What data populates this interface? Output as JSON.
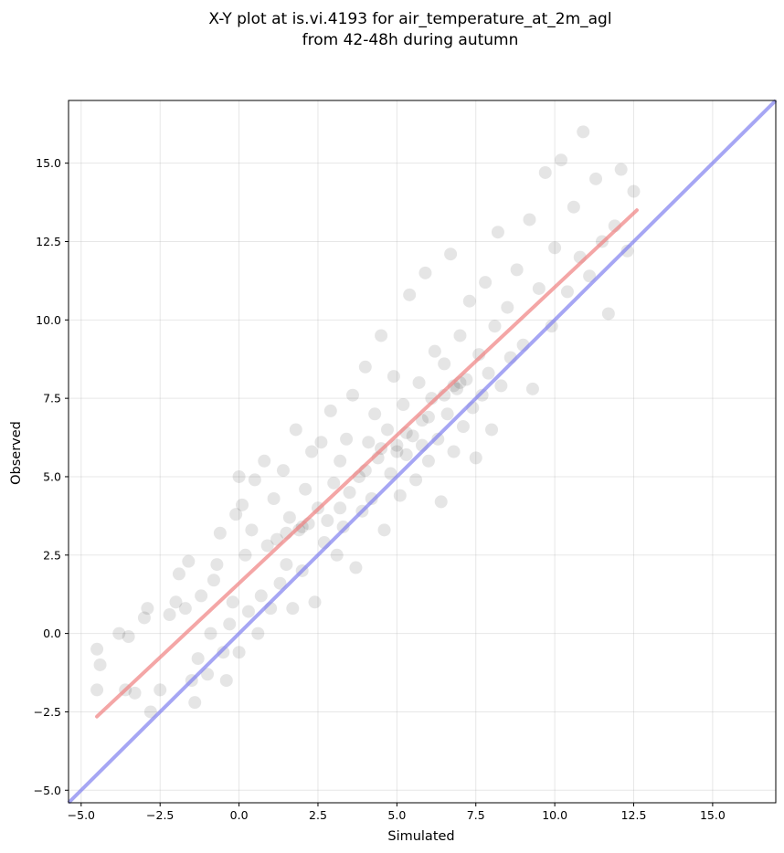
{
  "chart_data": {
    "type": "scatter",
    "title_line1": "X-Y plot at is.vi.4193 for air_temperature_at_2m_agl",
    "title_line2": "from 42-48h during autumn",
    "xlabel": "Simulated",
    "ylabel": "Observed",
    "xlim": [
      -5.4,
      17.0
    ],
    "ylim": [
      -5.4,
      17.0
    ],
    "xticks": [
      -5.0,
      -2.5,
      0.0,
      2.5,
      5.0,
      7.5,
      10.0,
      12.5,
      15.0
    ],
    "xtick_labels": [
      "−5.0",
      "−2.5",
      "0.0",
      "2.5",
      "5.0",
      "7.5",
      "10.0",
      "12.5",
      "15.0"
    ],
    "yticks": [
      -5.0,
      -2.5,
      0.0,
      2.5,
      5.0,
      7.5,
      10.0,
      12.5,
      15.0
    ],
    "ytick_labels": [
      "−5.0",
      "−2.5",
      "0.0",
      "2.5",
      "5.0",
      "7.5",
      "10.0",
      "12.5",
      "15.0"
    ],
    "grid": true,
    "point_color": "#000000",
    "point_alpha": 0.1,
    "regression_line": {
      "x": [
        -4.5,
        12.6
      ],
      "y": [
        -2.65,
        13.5
      ],
      "color": "#f08080"
    },
    "identity_line": {
      "x": [
        -5.4,
        17.0
      ],
      "y": [
        -5.4,
        17.0
      ],
      "color": "#8080f0"
    },
    "points": [
      [
        -4.5,
        -0.5
      ],
      [
        -4.4,
        -1.0
      ],
      [
        -4.5,
        -1.8
      ],
      [
        -3.8,
        0.0
      ],
      [
        -3.5,
        -0.1
      ],
      [
        -3.6,
        -1.8
      ],
      [
        -3.3,
        -1.9
      ],
      [
        -3.0,
        0.5
      ],
      [
        -2.9,
        0.8
      ],
      [
        -2.8,
        -2.5
      ],
      [
        -2.5,
        -1.8
      ],
      [
        -2.2,
        0.6
      ],
      [
        -2.0,
        1.0
      ],
      [
        -1.9,
        1.9
      ],
      [
        -1.7,
        0.8
      ],
      [
        -1.6,
        2.3
      ],
      [
        -1.5,
        -1.5
      ],
      [
        -1.4,
        -2.2
      ],
      [
        -1.3,
        -0.8
      ],
      [
        -1.2,
        1.2
      ],
      [
        -1.0,
        -1.3
      ],
      [
        -0.9,
        0.0
      ],
      [
        -0.8,
        1.7
      ],
      [
        -0.7,
        2.2
      ],
      [
        -0.6,
        3.2
      ],
      [
        -0.5,
        -0.6
      ],
      [
        -0.4,
        -1.5
      ],
      [
        -0.3,
        0.3
      ],
      [
        -0.2,
        1.0
      ],
      [
        -0.1,
        3.8
      ],
      [
        0.0,
        5.0
      ],
      [
        0.0,
        -0.6
      ],
      [
        0.1,
        4.1
      ],
      [
        0.2,
        2.5
      ],
      [
        0.3,
        0.7
      ],
      [
        0.4,
        3.3
      ],
      [
        0.5,
        4.9
      ],
      [
        0.6,
        0.0
      ],
      [
        0.7,
        1.2
      ],
      [
        0.8,
        5.5
      ],
      [
        0.9,
        2.8
      ],
      [
        1.0,
        0.8
      ],
      [
        1.1,
        4.3
      ],
      [
        1.2,
        3.0
      ],
      [
        1.3,
        1.6
      ],
      [
        1.4,
        5.2
      ],
      [
        1.5,
        2.2
      ],
      [
        1.6,
        3.7
      ],
      [
        1.7,
        0.8
      ],
      [
        1.8,
        6.5
      ],
      [
        1.9,
        3.3
      ],
      [
        2.0,
        2.0
      ],
      [
        2.1,
        4.6
      ],
      [
        2.2,
        3.5
      ],
      [
        2.3,
        5.8
      ],
      [
        2.4,
        1.0
      ],
      [
        2.5,
        4.0
      ],
      [
        2.6,
        6.1
      ],
      [
        2.7,
        2.9
      ],
      [
        2.8,
        3.6
      ],
      [
        2.9,
        7.1
      ],
      [
        3.0,
        4.8
      ],
      [
        3.1,
        2.5
      ],
      [
        3.2,
        5.5
      ],
      [
        3.3,
        3.4
      ],
      [
        3.4,
        6.2
      ],
      [
        3.5,
        4.5
      ],
      [
        3.6,
        7.6
      ],
      [
        3.7,
        2.1
      ],
      [
        3.8,
        5.0
      ],
      [
        3.9,
        3.9
      ],
      [
        4.0,
        8.5
      ],
      [
        4.1,
        6.1
      ],
      [
        4.2,
        4.3
      ],
      [
        4.3,
        7.0
      ],
      [
        4.4,
        5.6
      ],
      [
        4.5,
        9.5
      ],
      [
        4.6,
        3.3
      ],
      [
        4.7,
        6.5
      ],
      [
        4.8,
        5.1
      ],
      [
        4.9,
        8.2
      ],
      [
        5.0,
        6.0
      ],
      [
        5.1,
        4.4
      ],
      [
        5.2,
        7.3
      ],
      [
        5.3,
        5.7
      ],
      [
        5.4,
        10.8
      ],
      [
        5.5,
        6.3
      ],
      [
        5.6,
        4.9
      ],
      [
        5.7,
        8.0
      ],
      [
        5.8,
        6.8
      ],
      [
        5.9,
        11.5
      ],
      [
        6.0,
        5.5
      ],
      [
        6.1,
        7.5
      ],
      [
        6.2,
        9.0
      ],
      [
        6.3,
        6.2
      ],
      [
        6.4,
        4.2
      ],
      [
        6.5,
        8.6
      ],
      [
        6.6,
        7.0
      ],
      [
        6.7,
        12.1
      ],
      [
        6.8,
        5.8
      ],
      [
        6.9,
        7.8
      ],
      [
        7.0,
        9.5
      ],
      [
        7.1,
        6.6
      ],
      [
        7.2,
        8.1
      ],
      [
        7.3,
        10.6
      ],
      [
        7.4,
        7.2
      ],
      [
        7.5,
        5.6
      ],
      [
        7.6,
        8.9
      ],
      [
        7.7,
        7.6
      ],
      [
        7.8,
        11.2
      ],
      [
        7.9,
        8.3
      ],
      [
        8.0,
        6.5
      ],
      [
        8.1,
        9.8
      ],
      [
        8.2,
        12.8
      ],
      [
        8.3,
        7.9
      ],
      [
        8.5,
        10.4
      ],
      [
        8.6,
        8.8
      ],
      [
        8.8,
        11.6
      ],
      [
        9.0,
        9.2
      ],
      [
        9.2,
        13.2
      ],
      [
        9.3,
        7.8
      ],
      [
        9.5,
        11.0
      ],
      [
        9.7,
        14.7
      ],
      [
        9.9,
        9.8
      ],
      [
        10.0,
        12.3
      ],
      [
        10.2,
        15.1
      ],
      [
        10.4,
        10.9
      ],
      [
        10.6,
        13.6
      ],
      [
        10.8,
        12.0
      ],
      [
        10.9,
        16.0
      ],
      [
        11.1,
        11.4
      ],
      [
        11.3,
        14.5
      ],
      [
        11.5,
        12.5
      ],
      [
        11.7,
        10.2
      ],
      [
        11.9,
        13.0
      ],
      [
        12.1,
        14.8
      ],
      [
        12.3,
        12.2
      ],
      [
        12.5,
        14.1
      ],
      [
        5.0,
        5.8
      ],
      [
        5.3,
        6.4
      ],
      [
        6.0,
        6.9
      ],
      [
        6.5,
        7.6
      ],
      [
        7.0,
        8.0
      ],
      [
        4.5,
        5.9
      ],
      [
        5.8,
        6.0
      ],
      [
        6.8,
        7.9
      ],
      [
        3.2,
        4.0
      ],
      [
        2.0,
        3.4
      ],
      [
        1.5,
        3.2
      ],
      [
        4.0,
        5.2
      ]
    ]
  }
}
